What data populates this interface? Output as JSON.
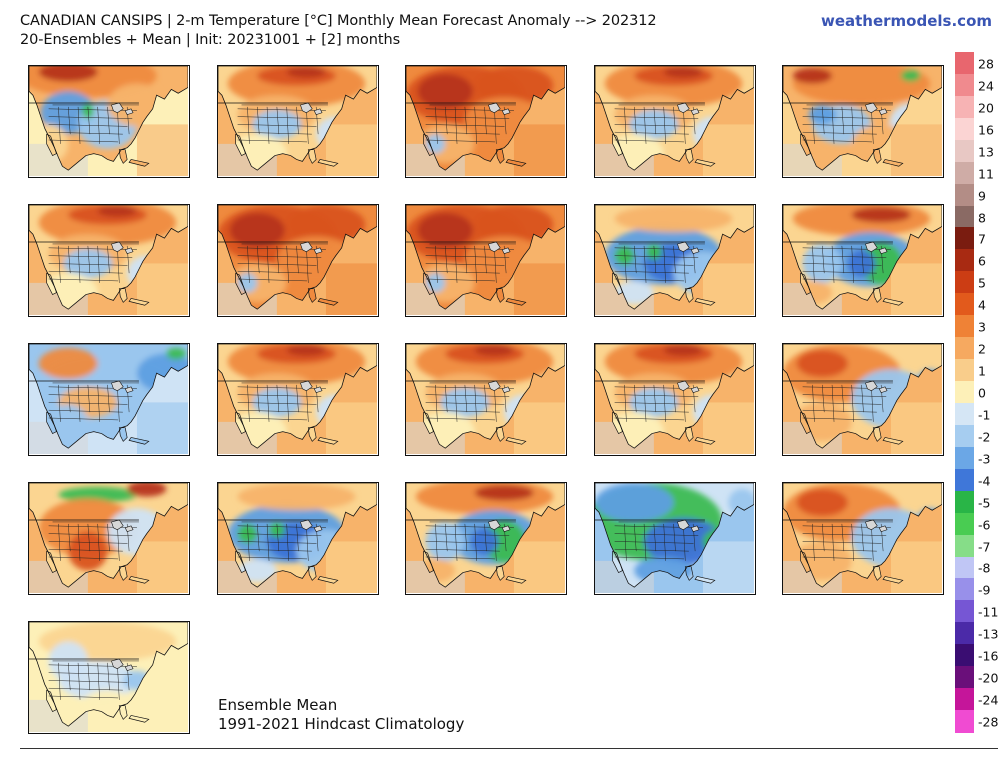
{
  "header": {
    "title_line1": "CANADIAN CANSIPS | 2-m Temperature [°C] Monthly Mean Forecast Anomaly --> 202312",
    "title_line2": "20-Ensembles + Mean | Init: 20231001 + [2] months",
    "site": "weathermodels.com"
  },
  "footer": {
    "label_line1": "Ensemble Mean",
    "label_line2": "1991-2021 Hindcast Climatology"
  },
  "maps": [
    {
      "name": "ensemble-1",
      "pattern": "cool-west"
    },
    {
      "name": "ensemble-2",
      "pattern": "warm-north"
    },
    {
      "name": "ensemble-3",
      "pattern": "very-warm"
    },
    {
      "name": "ensemble-4",
      "pattern": "warm-north"
    },
    {
      "name": "ensemble-5",
      "pattern": "cool-south"
    },
    {
      "name": "ensemble-6",
      "pattern": "warm-north"
    },
    {
      "name": "ensemble-7",
      "pattern": "very-warm"
    },
    {
      "name": "ensemble-8",
      "pattern": "very-warm"
    },
    {
      "name": "ensemble-9",
      "pattern": "cold-central"
    },
    {
      "name": "ensemble-10",
      "pattern": "cold-east"
    },
    {
      "name": "ensemble-11",
      "pattern": "cool-mixed"
    },
    {
      "name": "ensemble-12",
      "pattern": "warm-north"
    },
    {
      "name": "ensemble-13",
      "pattern": "warm-north"
    },
    {
      "name": "ensemble-14",
      "pattern": "warm-north"
    },
    {
      "name": "ensemble-15",
      "pattern": "cool-east"
    },
    {
      "name": "ensemble-16",
      "pattern": "warm-west"
    },
    {
      "name": "ensemble-17",
      "pattern": "cold-central"
    },
    {
      "name": "ensemble-18",
      "pattern": "cold-east"
    },
    {
      "name": "ensemble-19",
      "pattern": "very-cold"
    },
    {
      "name": "ensemble-20",
      "pattern": "cool-east"
    },
    {
      "name": "ensemble-mean",
      "pattern": "mean"
    }
  ],
  "colorbar": {
    "labels": [
      "28",
      "24",
      "20",
      "16",
      "13",
      "11",
      "9",
      "8",
      "7",
      "6",
      "5",
      "4",
      "3",
      "2",
      "1",
      "0",
      "-1",
      "-2",
      "-3",
      "-4",
      "-5",
      "-6",
      "-7",
      "-8",
      "-9",
      "-11",
      "-13",
      "-16",
      "-20",
      "-24",
      "-28"
    ],
    "colors": [
      "#e8666e",
      "#f08a8e",
      "#f7b3b4",
      "#fbd4d3",
      "#e8c8c4",
      "#cfaca6",
      "#b38d86",
      "#8a6a64",
      "#7a1c10",
      "#a82a12",
      "#cc3d14",
      "#e25a1c",
      "#ef8236",
      "#f6a960",
      "#f9cd8b",
      "#fdf0b8",
      "#d5e6f5",
      "#a6cdf0",
      "#6ba7e6",
      "#3f77d9",
      "#29b547",
      "#49cc52",
      "#86dd88",
      "#c0c6f5",
      "#9890ea",
      "#7656d4",
      "#4b2aa8",
      "#3a0d72",
      "#6a0f7a",
      "#c5159a",
      "#f04bd2"
    ]
  }
}
